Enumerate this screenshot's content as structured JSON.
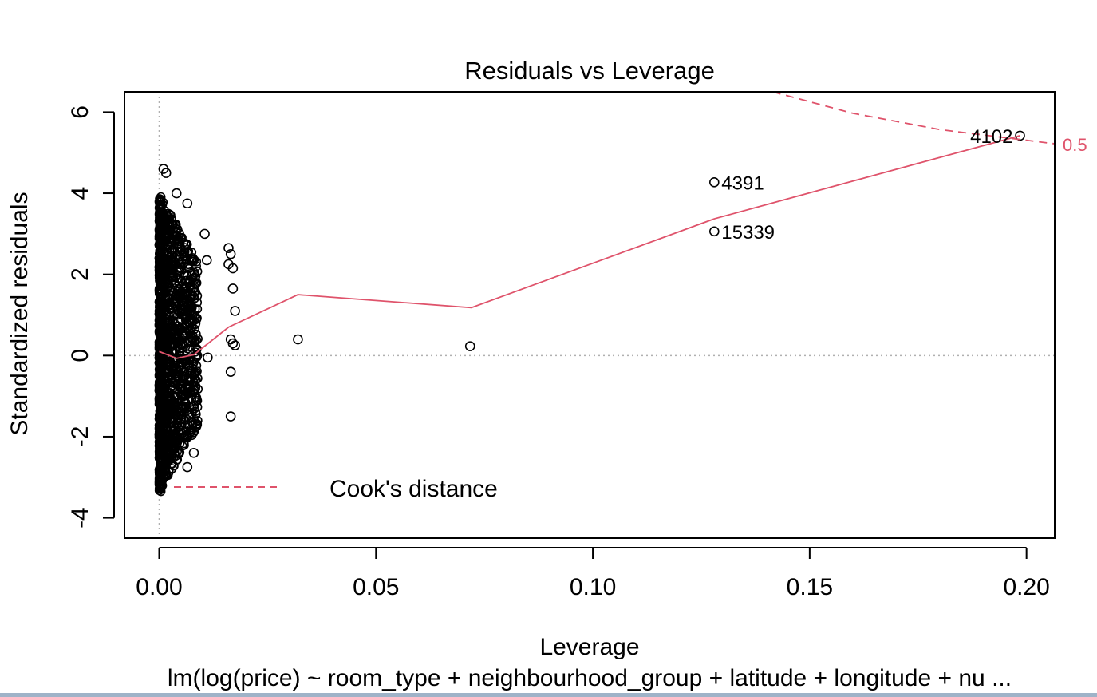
{
  "chart_data": {
    "type": "scatter",
    "title": "Residuals vs Leverage",
    "xlabel": "Leverage",
    "ylabel": "Standardized residuals",
    "subtitle": "lm(log(price) ~ room_type + neighbourhood_group + latitude + longitude + nu ...",
    "xlim": [
      -0.008,
      0.2065
    ],
    "ylim": [
      -4.5,
      6.5
    ],
    "x_ticks": [
      {
        "value": 0.0,
        "label": "0.00"
      },
      {
        "value": 0.05,
        "label": "0.05"
      },
      {
        "value": 0.1,
        "label": "0.10"
      },
      {
        "value": 0.15,
        "label": "0.15"
      },
      {
        "value": 0.2,
        "label": "0.20"
      }
    ],
    "y_ticks": [
      {
        "value": 6,
        "label": "6"
      },
      {
        "value": 4,
        "label": "4"
      },
      {
        "value": 2,
        "label": "2"
      },
      {
        "value": 0,
        "label": "0"
      },
      {
        "value": -2,
        "label": "-2"
      },
      {
        "value": -4,
        "label": "-4"
      }
    ],
    "grid": false,
    "reference_lines": {
      "x": 0,
      "y": 0
    },
    "points": [
      {
        "x": 0.001,
        "y": 4.6
      },
      {
        "x": 0.0016,
        "y": 4.5
      },
      {
        "x": 0.004,
        "y": 4.0
      },
      {
        "x": 0.0065,
        "y": 3.75
      },
      {
        "x": 0.0105,
        "y": 3.0
      },
      {
        "x": 0.016,
        "y": 2.65
      },
      {
        "x": 0.0165,
        "y": 2.5
      },
      {
        "x": 0.011,
        "y": 2.35
      },
      {
        "x": 0.016,
        "y": 2.25
      },
      {
        "x": 0.017,
        "y": 2.15
      },
      {
        "x": 0.0085,
        "y": 2.2
      },
      {
        "x": 0.017,
        "y": 1.65
      },
      {
        "x": 0.0175,
        "y": 1.1
      },
      {
        "x": 0.0165,
        "y": 0.4
      },
      {
        "x": 0.017,
        "y": 0.3
      },
      {
        "x": 0.0175,
        "y": 0.25
      },
      {
        "x": 0.0112,
        "y": -0.05
      },
      {
        "x": 0.0165,
        "y": -0.4
      },
      {
        "x": 0.0165,
        "y": -1.5
      },
      {
        "x": 0.008,
        "y": -2.4
      },
      {
        "x": 0.0065,
        "y": -2.75
      },
      {
        "x": 0.032,
        "y": 0.4
      },
      {
        "x": 0.0717,
        "y": 0.23
      },
      {
        "x": 0.128,
        "y": 4.27
      },
      {
        "x": 0.128,
        "y": 3.06
      },
      {
        "x": 0.1985,
        "y": 5.42
      }
    ],
    "point_labels": [
      {
        "x": 0.128,
        "y": 4.27,
        "label": "4391",
        "side": "right"
      },
      {
        "x": 0.128,
        "y": 3.06,
        "label": "15339",
        "side": "right"
      },
      {
        "x": 0.1985,
        "y": 5.42,
        "label": "4102",
        "side": "left"
      }
    ],
    "dense_band": {
      "x_min": 0.0,
      "x_max": 0.009,
      "y_min": -3.35,
      "y_max": 3.95
    },
    "smoother": {
      "name": "",
      "color": "#df536b",
      "x": [
        0.0,
        0.004,
        0.008,
        0.016,
        0.032,
        0.072,
        0.128,
        0.1985
      ],
      "y": [
        0.1,
        -0.07,
        0.02,
        0.7,
        1.5,
        1.18,
        3.37,
        5.42
      ]
    },
    "cooks_contours": [
      {
        "level": 0.5,
        "label": "0.5",
        "x": [
          0.1415,
          0.16,
          0.18,
          0.2065
        ],
        "y": [
          6.5,
          5.97,
          5.57,
          5.22
        ]
      }
    ],
    "legend": {
      "label": "Cook's distance",
      "style": "dashed",
      "color": "#df536b",
      "position": "bottom-left"
    }
  }
}
